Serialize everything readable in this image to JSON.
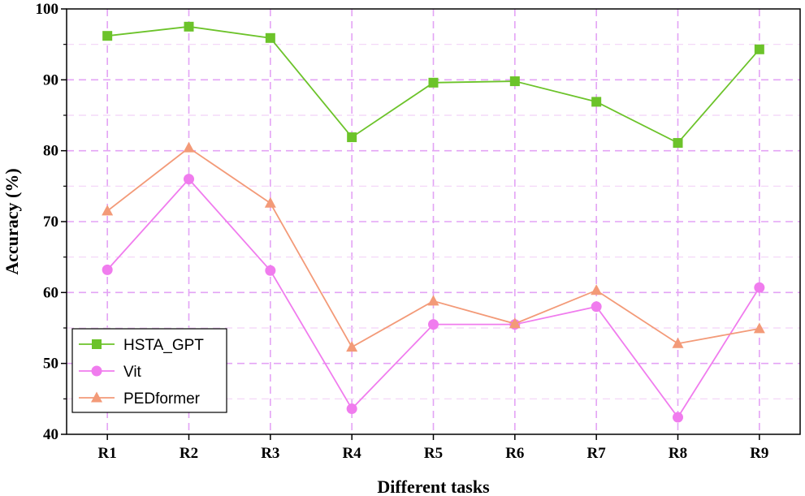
{
  "chart_data": {
    "type": "line",
    "xlabel": "Different tasks",
    "ylabel": "Accuracy (%)",
    "categories": [
      "R1",
      "R2",
      "R3",
      "R4",
      "R5",
      "R6",
      "R7",
      "R8",
      "R9"
    ],
    "ylim": [
      40,
      100
    ],
    "yticks": [
      40,
      50,
      60,
      70,
      80,
      90,
      100
    ],
    "grid": true,
    "grid_color": "#e3a3f5",
    "legend_position": "bottom-left",
    "series": [
      {
        "name": "HSTA_GPT",
        "color": "#6cc32a",
        "marker": "square",
        "values": [
          96.2,
          97.5,
          95.9,
          81.9,
          89.6,
          89.8,
          86.9,
          81.1,
          94.3
        ]
      },
      {
        "name": "Vit",
        "color": "#f07cee",
        "marker": "circle",
        "values": [
          63.2,
          76.0,
          63.1,
          43.6,
          55.5,
          55.5,
          58.0,
          42.4,
          60.7
        ]
      },
      {
        "name": "PEDformer",
        "color": "#f39a78",
        "marker": "triangle",
        "values": [
          71.5,
          80.4,
          72.6,
          52.3,
          58.8,
          55.6,
          60.3,
          52.8,
          54.9
        ]
      }
    ]
  }
}
